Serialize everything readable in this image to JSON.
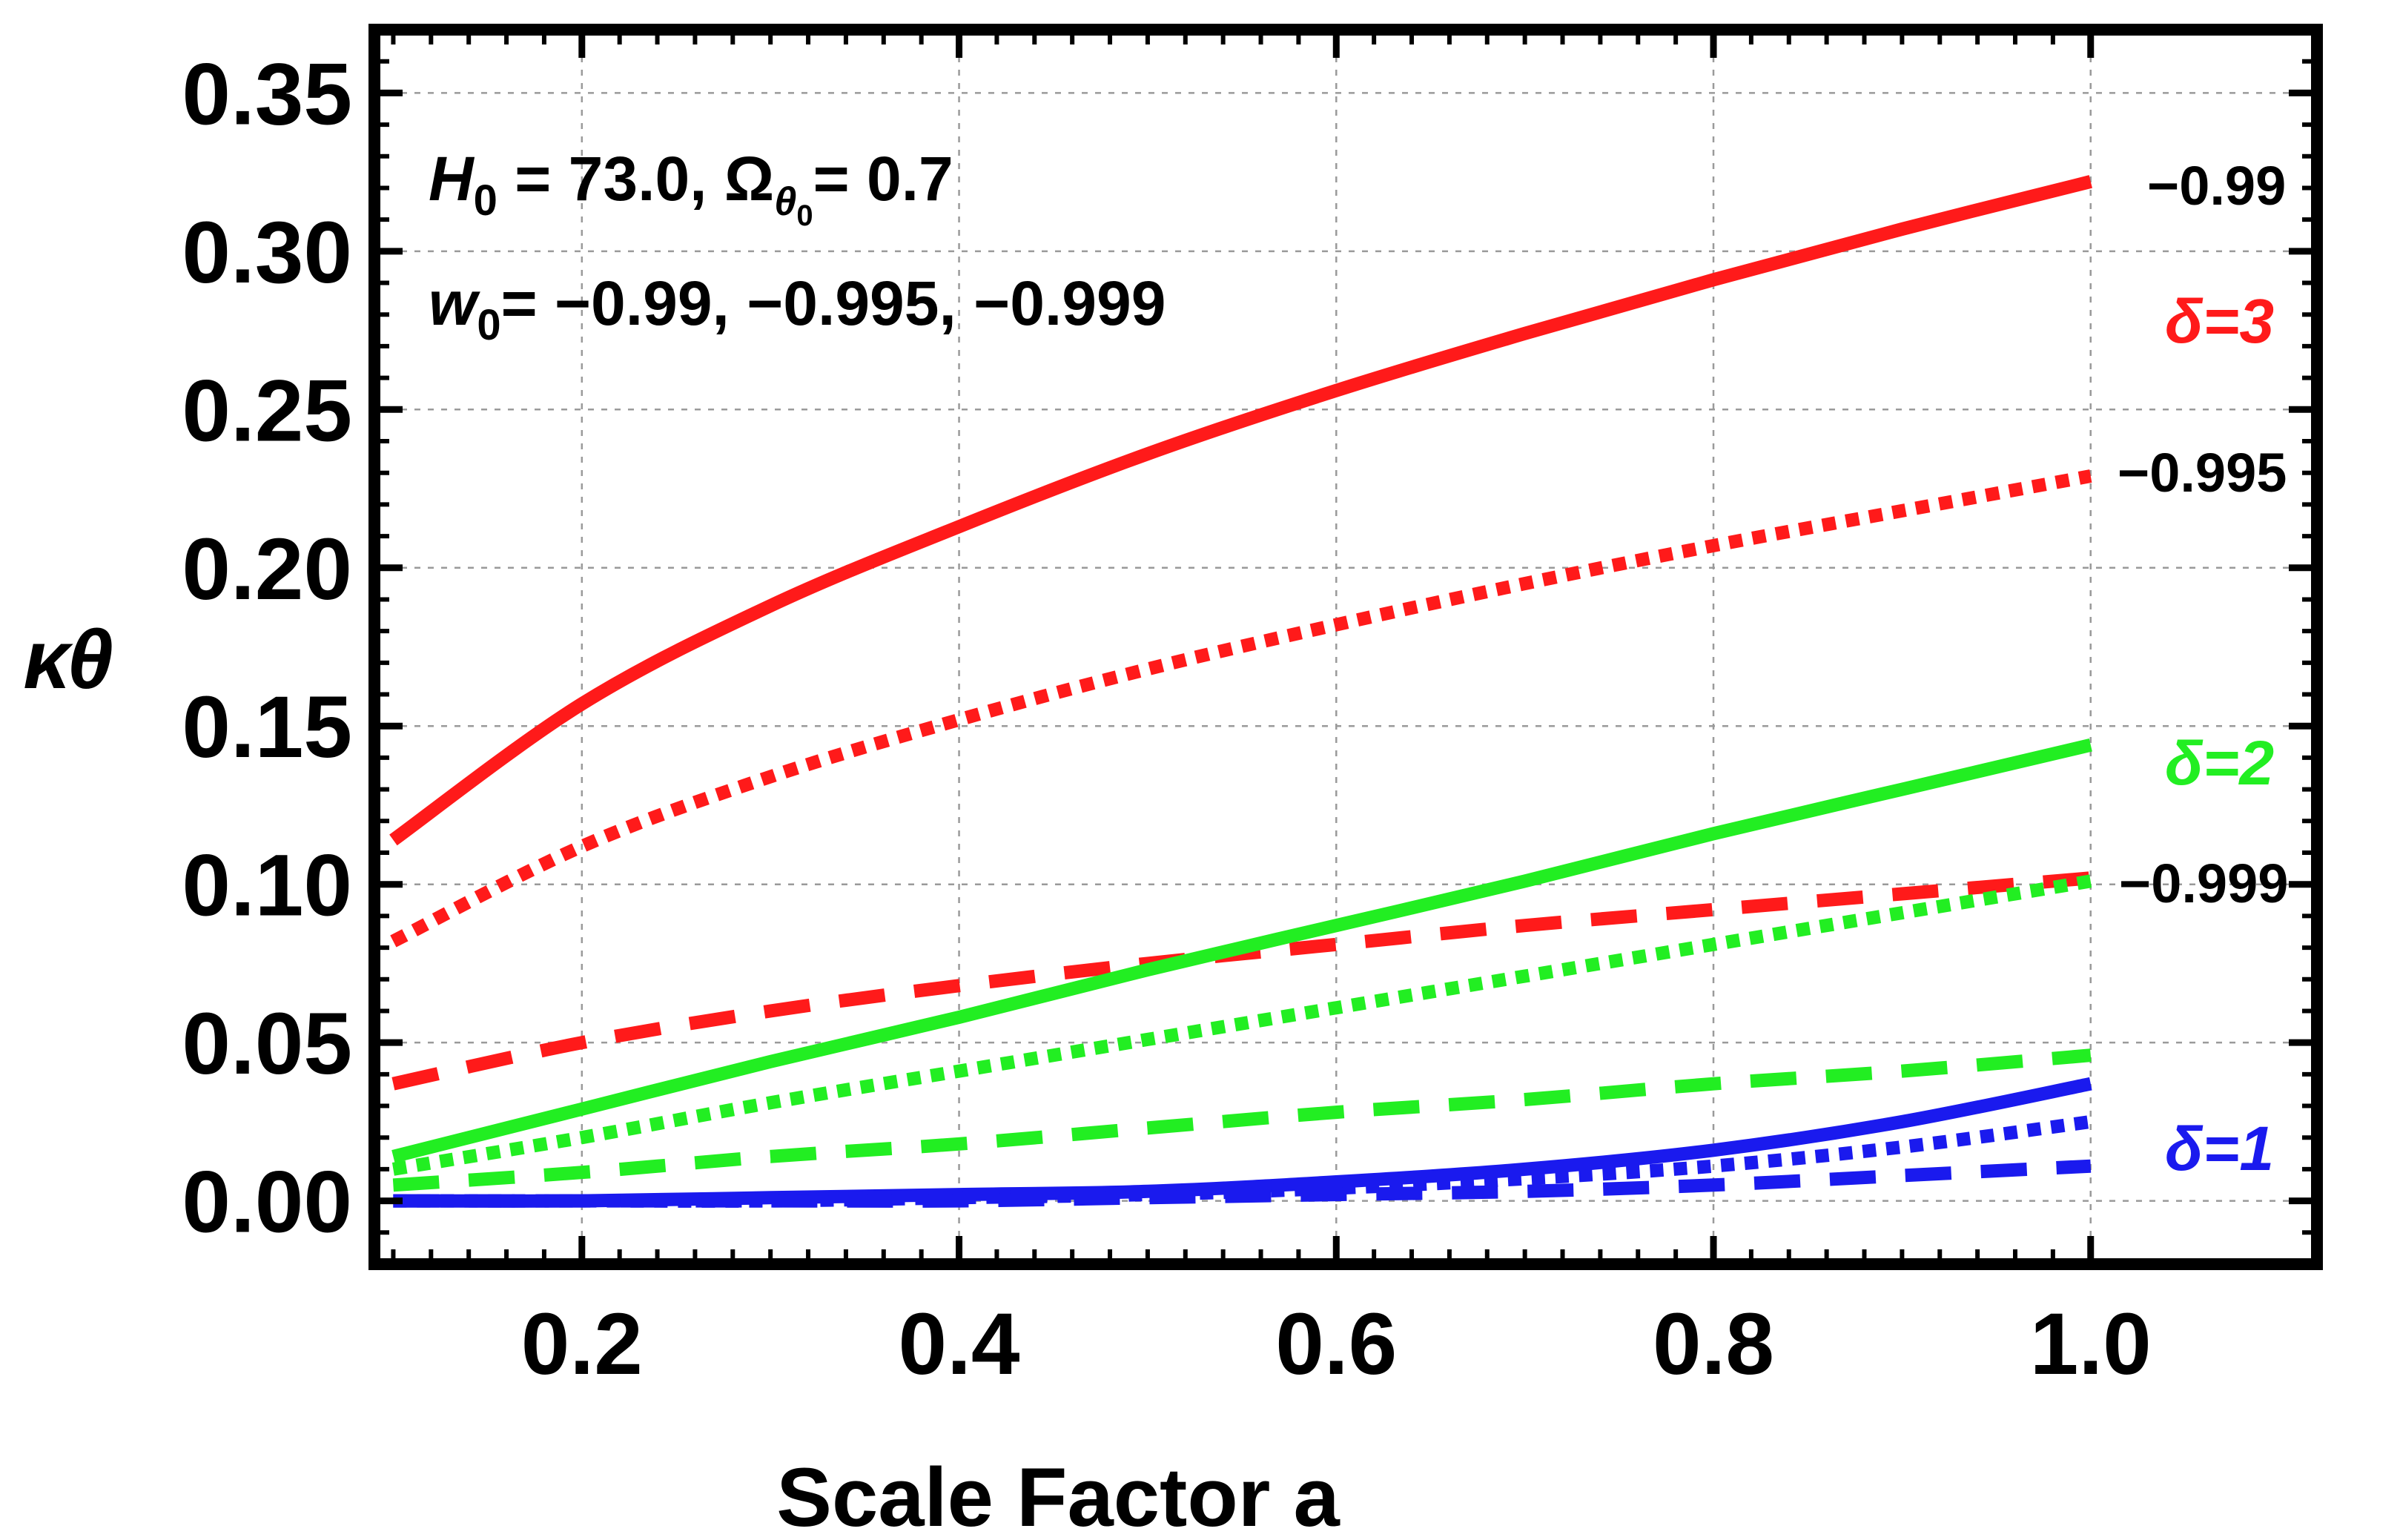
{
  "chart_data": {
    "type": "line",
    "xlabel": "Scale Factor a",
    "ylabel": "κθ",
    "xlim": [
      0.09,
      1.12
    ],
    "ylim": [
      -0.02,
      0.37
    ],
    "x_ticks": [
      "0.2",
      "0.4",
      "0.6",
      "0.8",
      "1.0"
    ],
    "y_ticks": [
      "0.00",
      "0.05",
      "0.10",
      "0.15",
      "0.20",
      "0.25",
      "0.30",
      "0.35"
    ],
    "grid": true,
    "annotation": {
      "line1": {
        "H": "H",
        "H_sub": "0",
        "H_val": " = 73.0, ",
        "Omega": "Ω",
        "Omega_sub": "θ",
        "Omega_subsub": "0",
        "Omega_val": "= 0.7"
      },
      "line2": {
        "w": "w",
        "w_sub": "0",
        "w_val": "= −0.99, −0.995, −0.999"
      }
    },
    "w_labels": [
      "−0.99",
      "−0.995",
      "−0.999"
    ],
    "delta_labels": [
      {
        "text": "δ=3",
        "color": "#ff1a1a"
      },
      {
        "text": "δ=2",
        "color": "#22ee22"
      },
      {
        "text": "δ=1",
        "color": "#1a1aee"
      }
    ],
    "series": [
      {
        "name": "δ=3, w0=−0.99",
        "color": "#ff1a1a",
        "style": "solid",
        "x": [
          0.1,
          0.2,
          0.3,
          0.4,
          0.5,
          0.6,
          0.7,
          0.8,
          0.9,
          1.0
        ],
        "y": [
          0.114,
          0.157,
          0.188,
          0.213,
          0.236,
          0.256,
          0.274,
          0.291,
          0.307,
          0.322
        ]
      },
      {
        "name": "δ=3, w0=−0.995",
        "color": "#ff1a1a",
        "style": "dotted",
        "x": [
          0.1,
          0.2,
          0.3,
          0.4,
          0.5,
          0.6,
          0.7,
          0.8,
          0.9,
          1.0
        ],
        "y": [
          0.082,
          0.112,
          0.134,
          0.152,
          0.168,
          0.182,
          0.195,
          0.207,
          0.218,
          0.229
        ]
      },
      {
        "name": "δ=3, w0=−0.999",
        "color": "#ff1a1a",
        "style": "dashed",
        "x": [
          0.1,
          0.2,
          0.3,
          0.4,
          0.5,
          0.6,
          0.7,
          0.8,
          0.9,
          1.0
        ],
        "y": [
          0.037,
          0.05,
          0.06,
          0.068,
          0.075,
          0.081,
          0.087,
          0.092,
          0.097,
          0.102
        ]
      },
      {
        "name": "δ=2, w0=−0.99",
        "color": "#22ee22",
        "style": "solid",
        "x": [
          0.1,
          0.2,
          0.3,
          0.4,
          0.5,
          0.6,
          0.7,
          0.8,
          0.9,
          1.0
        ],
        "y": [
          0.014,
          0.029,
          0.044,
          0.058,
          0.073,
          0.087,
          0.101,
          0.116,
          0.13,
          0.144
        ]
      },
      {
        "name": "δ=2, w0=−0.995",
        "color": "#22ee22",
        "style": "dotted",
        "x": [
          0.1,
          0.2,
          0.3,
          0.4,
          0.5,
          0.6,
          0.7,
          0.8,
          0.9,
          1.0
        ],
        "y": [
          0.01,
          0.02,
          0.031,
          0.041,
          0.051,
          0.061,
          0.071,
          0.081,
          0.091,
          0.101
        ]
      },
      {
        "name": "δ=2, w0=−0.999",
        "color": "#22ee22",
        "style": "dashed",
        "x": [
          0.1,
          0.2,
          0.3,
          0.4,
          0.5,
          0.6,
          0.7,
          0.8,
          0.9,
          1.0
        ],
        "y": [
          0.005,
          0.009,
          0.014,
          0.018,
          0.023,
          0.028,
          0.032,
          0.037,
          0.041,
          0.046
        ]
      },
      {
        "name": "δ=1, w0=−0.99",
        "color": "#1a1aee",
        "style": "solid",
        "x": [
          0.1,
          0.2,
          0.3,
          0.4,
          0.5,
          0.6,
          0.7,
          0.8,
          0.9,
          1.0
        ],
        "y": [
          0.0,
          0.0,
          0.001,
          0.002,
          0.003,
          0.006,
          0.01,
          0.016,
          0.025,
          0.037
        ]
      },
      {
        "name": "δ=1, w0=−0.995",
        "color": "#1a1aee",
        "style": "dotted",
        "x": [
          0.1,
          0.2,
          0.3,
          0.4,
          0.5,
          0.6,
          0.7,
          0.8,
          0.9,
          1.0
        ],
        "y": [
          0.0,
          0.0,
          0.0,
          0.001,
          0.002,
          0.004,
          0.007,
          0.011,
          0.017,
          0.025
        ]
      },
      {
        "name": "δ=1, w0=−0.999",
        "color": "#1a1aee",
        "style": "dashed",
        "x": [
          0.1,
          0.2,
          0.3,
          0.4,
          0.5,
          0.6,
          0.7,
          0.8,
          0.9,
          1.0
        ],
        "y": [
          0.0,
          0.0,
          0.0,
          0.0,
          0.001,
          0.002,
          0.003,
          0.005,
          0.008,
          0.011
        ]
      }
    ]
  }
}
